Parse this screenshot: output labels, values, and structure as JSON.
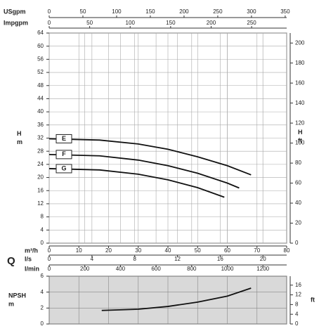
{
  "chart_data": [
    {
      "type": "line",
      "y_label": "H",
      "y_unit": "m",
      "y2_label": "H",
      "y2_unit": "ft",
      "q_label": "Q",
      "x_label": "m³/h",
      "xlim": [
        0,
        80
      ],
      "xticks": [
        0,
        10,
        20,
        30,
        40,
        50,
        60,
        70,
        80
      ],
      "ylim": [
        0,
        64
      ],
      "yticks": [
        0,
        4,
        8,
        12,
        16,
        20,
        24,
        28,
        32,
        36,
        40,
        44,
        48,
        52,
        56,
        60,
        64
      ],
      "y2lim": [
        0,
        210
      ],
      "y2ticks": [
        0,
        20,
        40,
        60,
        80,
        100,
        120,
        140,
        160,
        180,
        200
      ],
      "top_axes": [
        {
          "label": "USgpm",
          "xlim": [
            0,
            352.2
          ],
          "xticks": [
            0,
            50,
            100,
            150,
            200,
            250,
            300,
            350
          ]
        },
        {
          "label": "Impgpm",
          "xlim": [
            0,
            293.3
          ],
          "xticks": [
            0,
            50,
            100,
            150,
            200,
            250
          ]
        }
      ],
      "bottom_axes": [
        {
          "label": "l/s",
          "xlim": [
            0,
            22.22
          ],
          "xticks": [
            0,
            4,
            8,
            12,
            16,
            20
          ]
        },
        {
          "label": "l/min",
          "xlim": [
            0,
            1333.3
          ],
          "xticks": [
            0,
            200,
            400,
            600,
            800,
            1000,
            1200
          ]
        }
      ],
      "grid": true,
      "series": [
        {
          "name": "E",
          "color": "#111",
          "x": [
            0,
            17,
            30,
            40,
            50,
            60,
            68
          ],
          "values": [
            31.8,
            31.4,
            30.2,
            28.6,
            26.3,
            23.6,
            20.8
          ]
        },
        {
          "name": "F",
          "color": "#111",
          "x": [
            0,
            17,
            30,
            40,
            50,
            60,
            64
          ],
          "values": [
            27,
            26.6,
            25.3,
            23.6,
            21.3,
            18.3,
            16.8
          ]
        },
        {
          "name": "G",
          "color": "#111",
          "x": [
            0,
            17,
            30,
            40,
            50,
            59
          ],
          "values": [
            22.7,
            22.3,
            21,
            19.3,
            16.9,
            14
          ]
        }
      ]
    },
    {
      "type": "line",
      "y_label": "NPSH",
      "y_unit": "m",
      "y2_unit": "ft",
      "xlim": [
        0,
        80
      ],
      "xticks": [
        0,
        10,
        20,
        30,
        40,
        50,
        60,
        70,
        80
      ],
      "ylim": [
        0,
        6
      ],
      "yticks": [
        0,
        2,
        4,
        6
      ],
      "y2lim": [
        0,
        19.69
      ],
      "y2ticks": [
        0,
        4,
        8,
        12,
        16
      ],
      "grid": true,
      "series": [
        {
          "color": "#111",
          "x": [
            17.7,
            30,
            40,
            50,
            60,
            68
          ],
          "values": [
            1.7,
            1.85,
            2.2,
            2.75,
            3.5,
            4.5
          ]
        }
      ]
    }
  ]
}
